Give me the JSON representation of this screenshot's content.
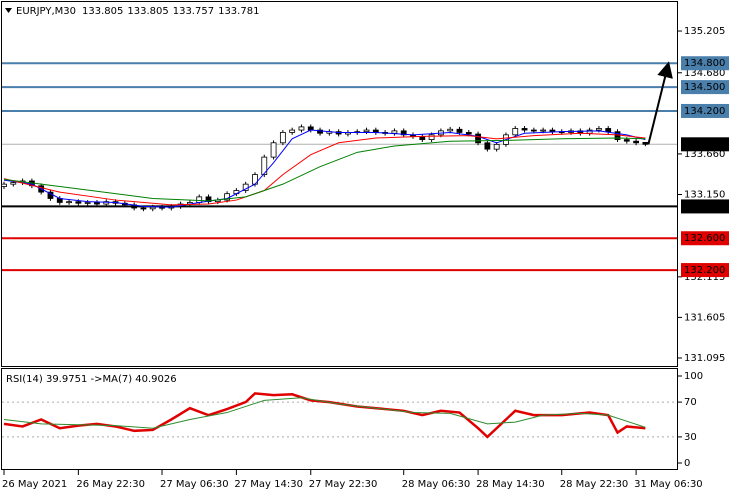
{
  "chart_data": {
    "type": "candlestick",
    "symbol": "EURJPY,M30",
    "header_values": [
      133.805,
      133.805,
      133.757,
      133.781
    ],
    "xlim": [
      -0.43,
      72.4
    ],
    "ylim": [
      130.994,
      135.595
    ],
    "xticks": [
      {
        "value": 0,
        "label": "26 May 2021"
      },
      {
        "value": 8,
        "label": "26 May 22:30"
      },
      {
        "value": 17,
        "label": "27 May 06:30"
      },
      {
        "value": 25,
        "label": "27 May 14:30"
      },
      {
        "value": 33,
        "label": "27 May 22:30"
      },
      {
        "value": 43,
        "label": "28 May 06:30"
      },
      {
        "value": 51,
        "label": "28 May 14:30"
      },
      {
        "value": 60,
        "label": "28 May 22:30"
      },
      {
        "value": 68,
        "label": "31 May 06:30"
      }
    ],
    "yticks": [
      {
        "value": 135.205,
        "label": "135.205"
      },
      {
        "value": 134.68,
        "label": "134.680"
      },
      {
        "value": 133.66,
        "label": "133.660"
      },
      {
        "value": 133.15,
        "label": "133.150"
      },
      {
        "value": 132.115,
        "label": "132.115"
      },
      {
        "value": 131.605,
        "label": "131.605"
      },
      {
        "value": 131.095,
        "label": "131.095"
      }
    ],
    "open": [
      133.25,
      133.28,
      133.3,
      133.32,
      133.26,
      133.18,
      133.1,
      133.05,
      133.06,
      133.04,
      133.05,
      133.03,
      133.06,
      133.04,
      133.02,
      132.98,
      132.97,
      132.99,
      132.98,
      133.0,
      133.03,
      133.05,
      133.12,
      133.06,
      133.08,
      133.16,
      133.2,
      133.28,
      133.4,
      133.62,
      133.8,
      133.93,
      133.96,
      134.0,
      133.96,
      133.92,
      133.94,
      133.91,
      133.93,
      133.94,
      133.96,
      133.93,
      133.92,
      133.95,
      133.9,
      133.88,
      133.84,
      133.9,
      133.95,
      133.97,
      133.93,
      133.91,
      133.8,
      133.72,
      133.78,
      133.9,
      133.98,
      133.96,
      133.95,
      133.96,
      133.94,
      133.93,
      133.95,
      133.92,
      133.96,
      133.98,
      133.94,
      133.84,
      133.82,
      133.805
    ],
    "high": [
      133.31,
      133.33,
      133.35,
      133.35,
      133.29,
      133.21,
      133.13,
      133.09,
      133.09,
      133.08,
      133.08,
      133.09,
      133.09,
      133.07,
      133.05,
      133.01,
      133.02,
      133.02,
      133.03,
      133.06,
      133.08,
      133.15,
      133.15,
      133.11,
      133.19,
      133.23,
      133.31,
      133.43,
      133.65,
      133.83,
      133.96,
      133.99,
      134.03,
      134.03,
      133.99,
      133.97,
      133.97,
      133.96,
      133.97,
      133.99,
      133.99,
      133.96,
      133.98,
      133.98,
      133.93,
      133.91,
      133.93,
      133.98,
      134.0,
      134.0,
      133.96,
      133.94,
      133.83,
      133.81,
      133.93,
      134.01,
      134.01,
      133.99,
      133.99,
      133.99,
      133.97,
      133.98,
      133.98,
      133.99,
      134.01,
      134.01,
      133.97,
      133.87,
      133.85,
      133.805
    ],
    "low": [
      133.22,
      133.25,
      133.27,
      133.23,
      133.15,
      133.07,
      133.02,
      133.02,
      133.01,
      133.01,
      133.0,
      133.0,
      133.01,
      132.99,
      132.95,
      132.94,
      132.94,
      132.95,
      132.95,
      132.97,
      133.0,
      133.02,
      133.03,
      133.03,
      133.05,
      133.13,
      133.17,
      133.25,
      133.37,
      133.59,
      133.77,
      133.9,
      133.93,
      133.93,
      133.89,
      133.89,
      133.88,
      133.88,
      133.9,
      133.91,
      133.9,
      133.89,
      133.89,
      133.87,
      133.85,
      133.81,
      133.81,
      133.87,
      133.92,
      133.9,
      133.88,
      133.77,
      133.69,
      133.69,
      133.75,
      133.87,
      133.93,
      133.92,
      133.92,
      133.91,
      133.9,
      133.9,
      133.89,
      133.89,
      133.93,
      133.91,
      133.81,
      133.79,
      133.77,
      133.757
    ],
    "close": [
      133.28,
      133.3,
      133.32,
      133.26,
      133.18,
      133.1,
      133.05,
      133.06,
      133.04,
      133.05,
      133.03,
      133.06,
      133.04,
      133.02,
      132.98,
      132.97,
      132.99,
      132.98,
      133.0,
      133.03,
      133.05,
      133.12,
      133.06,
      133.08,
      133.16,
      133.2,
      133.28,
      133.4,
      133.62,
      133.8,
      133.93,
      133.96,
      134.0,
      133.96,
      133.92,
      133.94,
      133.91,
      133.93,
      133.94,
      133.96,
      133.93,
      133.92,
      133.95,
      133.9,
      133.88,
      133.84,
      133.9,
      133.95,
      133.97,
      133.93,
      133.91,
      133.8,
      133.72,
      133.78,
      133.9,
      133.98,
      133.96,
      133.95,
      133.96,
      133.94,
      133.93,
      133.95,
      133.92,
      133.96,
      133.98,
      133.94,
      133.84,
      133.82,
      133.8,
      133.781
    ],
    "moving_averages": [
      {
        "color": "#0000ff",
        "x": [
          0,
          3,
          6,
          9,
          12,
          15,
          18,
          21,
          24,
          27,
          29,
          31,
          33,
          36,
          40,
          44,
          48,
          51,
          53,
          56,
          60,
          64,
          67,
          69
        ],
        "values": [
          133.33,
          133.28,
          133.1,
          133.06,
          133.05,
          133.0,
          132.99,
          133.05,
          133.1,
          133.28,
          133.55,
          133.85,
          133.96,
          133.93,
          133.93,
          133.9,
          133.93,
          133.88,
          133.8,
          133.92,
          133.94,
          133.95,
          133.9,
          133.84
        ]
      },
      {
        "color": "#ff0000",
        "x": [
          0,
          6,
          12,
          18,
          22,
          25,
          28,
          30,
          33,
          36,
          40,
          45,
          50,
          53,
          57,
          62,
          66,
          69
        ],
        "values": [
          133.35,
          133.18,
          133.08,
          133.02,
          133.03,
          133.08,
          133.2,
          133.4,
          133.65,
          133.8,
          133.86,
          133.88,
          133.89,
          133.85,
          133.89,
          133.92,
          133.9,
          133.86
        ]
      },
      {
        "color": "#008000",
        "x": [
          0,
          8,
          16,
          22,
          26,
          30,
          34,
          38,
          42,
          48,
          54,
          60,
          66,
          69
        ],
        "values": [
          133.34,
          133.22,
          133.1,
          133.07,
          133.12,
          133.28,
          133.5,
          133.68,
          133.76,
          133.82,
          133.83,
          133.85,
          133.86,
          133.85
        ]
      }
    ],
    "current_price": {
      "value": 133.781,
      "label": "133.781"
    },
    "levels": [
      {
        "value": 134.8,
        "label": "134.800",
        "color": "#4a7eab"
      },
      {
        "value": 134.5,
        "label": "134.500",
        "color": "#4a7eab"
      },
      {
        "value": 134.2,
        "label": "134.200",
        "color": "#4a7eab"
      },
      {
        "value": 133.0,
        "label": "133.000",
        "color": "#000000"
      },
      {
        "value": 132.6,
        "label": "132.600",
        "color": "#e00000"
      },
      {
        "value": 132.2,
        "label": "132.200",
        "color": "#e00000"
      }
    ],
    "indicator": {
      "title": "RSI(14) 39.9751 ->MA(7) 40.9026",
      "ylim": [
        -8.05,
        109.2
      ],
      "yticks": [
        100,
        70,
        30,
        0
      ],
      "levels": [
        70,
        30
      ],
      "series": [
        {
          "color": "#e00000",
          "x": [
            0,
            2,
            4,
            6,
            8,
            10,
            12,
            14,
            16,
            18,
            20,
            22,
            24,
            26,
            27,
            29,
            31,
            33,
            35,
            38,
            41,
            43,
            45,
            47,
            49,
            51,
            52,
            54,
            55,
            57,
            60,
            63,
            65,
            66,
            67,
            69
          ],
          "values": [
            45,
            42,
            50,
            40,
            43,
            45,
            42,
            37,
            38,
            50,
            63,
            55,
            62,
            70,
            80,
            78,
            79,
            72,
            70,
            65,
            62,
            60,
            55,
            60,
            58,
            40,
            30,
            50,
            60,
            55,
            55,
            58,
            55,
            35,
            42,
            40
          ]
        },
        {
          "color": "#2e8b2e",
          "x": [
            0,
            4,
            8,
            12,
            16,
            20,
            24,
            28,
            32,
            36,
            40,
            44,
            48,
            52,
            55,
            58,
            62,
            65,
            69
          ],
          "values": [
            50,
            45,
            44,
            43,
            40,
            50,
            58,
            72,
            75,
            68,
            63,
            58,
            57,
            45,
            47,
            55,
            57,
            55,
            41
          ]
        }
      ]
    }
  }
}
